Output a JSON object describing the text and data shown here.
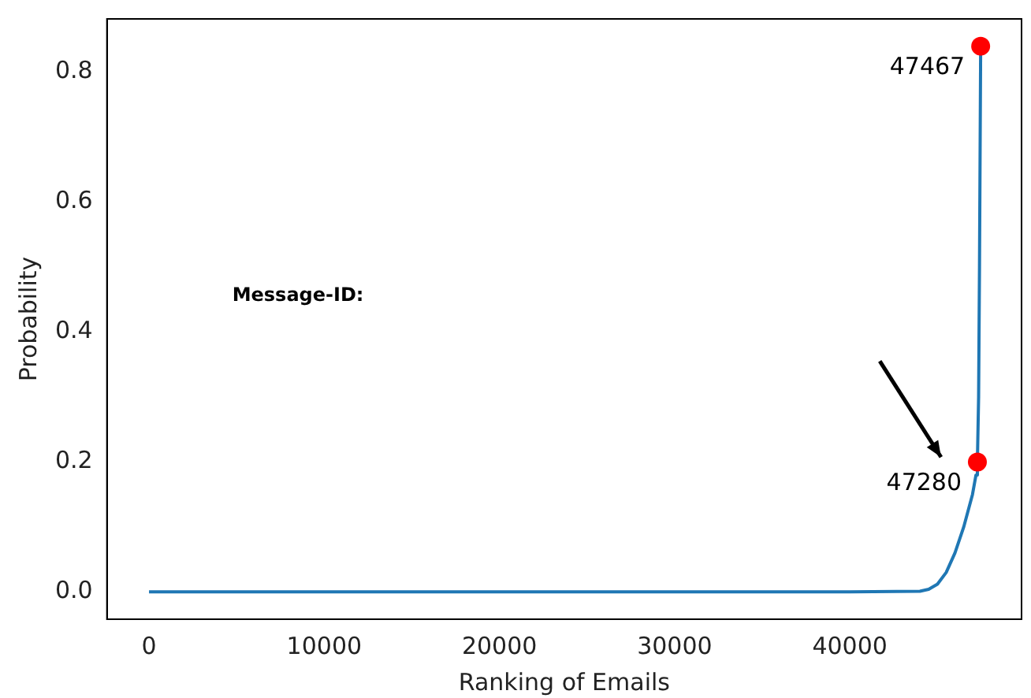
{
  "chart_data": {
    "type": "line",
    "xlabel": "Ranking of Emails",
    "ylabel": "Probability",
    "xlim": [
      -2400,
      49800
    ],
    "xticks": [
      0,
      10000,
      20000,
      30000,
      40000
    ],
    "ylim": [
      -0.042,
      0.882
    ],
    "yticks": [
      {
        "value": 0,
        "label": "0.0"
      },
      {
        "value": 0.2,
        "label": "0.2"
      },
      {
        "value": 0.4,
        "label": "0.4"
      },
      {
        "value": 0.6,
        "label": "0.6"
      },
      {
        "value": 0.8,
        "label": "0.8"
      }
    ],
    "grid": false,
    "legend": false,
    "line_style": "solid",
    "series": [
      {
        "marker": "none",
        "color": "#1f77b4",
        "x": [
          0,
          10000,
          20000,
          30000,
          40000,
          44000,
          44500,
          45000,
          45500,
          46000,
          46500,
          47000,
          47200,
          47280,
          47350,
          47400,
          47467
        ],
        "values": [
          0,
          0,
          0,
          0,
          0,
          0.001,
          0.004,
          0.012,
          0.03,
          0.06,
          0.1,
          0.15,
          0.18,
          0.2,
          0.3,
          0.5,
          0.84
        ]
      },
      {
        "type": "scatter",
        "marker": "circle",
        "color": "#ff0000",
        "x": [
          47280,
          47467
        ],
        "values": [
          0.2,
          0.84
        ]
      }
    ],
    "annotations": [
      "Message-ID:",
      {
        "text": "47467",
        "x": 47467,
        "y": 0.84
      },
      {
        "text": "47280",
        "x": 47280,
        "y": 0.2
      }
    ]
  }
}
